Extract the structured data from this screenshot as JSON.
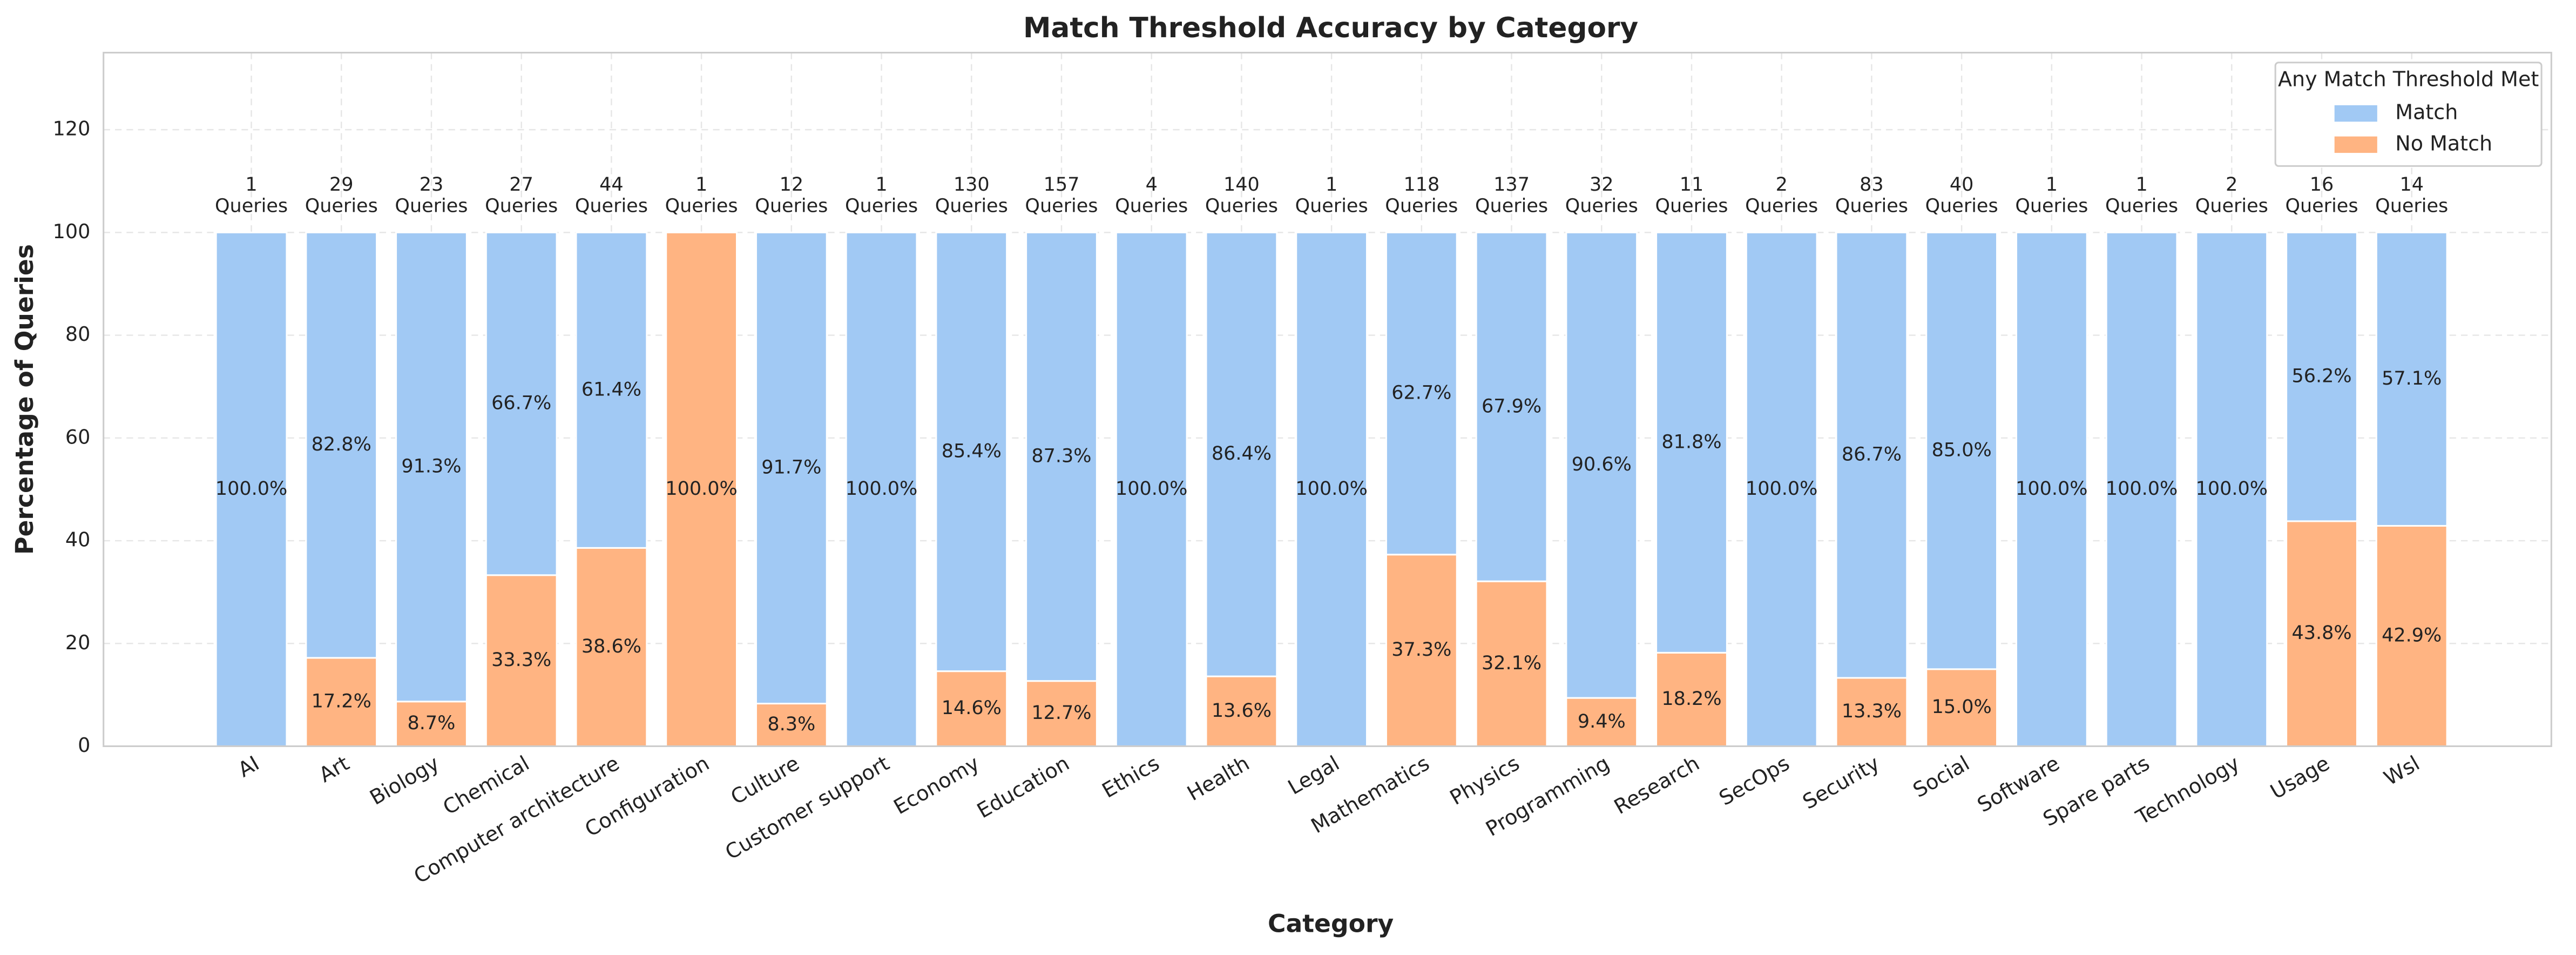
{
  "chart_data": {
    "type": "stacked_bar",
    "title": "Match Threshold Accuracy by Category",
    "x_label": "Category",
    "y_label": "Percentage of Queries",
    "legend_title": "Any Match Threshold Met",
    "legend_position": "upper right",
    "grid": true,
    "ylim": [
      0,
      135
    ],
    "yticks": [
      0,
      20,
      40,
      60,
      80,
      100,
      120
    ],
    "categories": [
      "AI",
      "Art",
      "Biology",
      "Chemical",
      "Computer architecture",
      "Configuration",
      "Culture",
      "Customer support",
      "Economy",
      "Education",
      "Ethics",
      "Health",
      "Legal",
      "Mathematics",
      "Physics",
      "Programming",
      "Research",
      "SecOps",
      "Security",
      "Social",
      "Software",
      "Spare parts",
      "Technology",
      "Usage",
      "Wsl"
    ],
    "series": [
      {
        "name": "No Match",
        "color": "#ffb482",
        "values": [
          0,
          17.2,
          8.7,
          33.3,
          38.6,
          100,
          8.3,
          0,
          14.6,
          12.7,
          0,
          13.6,
          0,
          37.3,
          32.1,
          9.4,
          18.2,
          0,
          13.3,
          15.0,
          0,
          0,
          0,
          43.8,
          42.9
        ],
        "value_labels": [
          null,
          "17.2%",
          "8.7%",
          "33.3%",
          "38.6%",
          "100.0%",
          "8.3%",
          null,
          "14.6%",
          "12.7%",
          null,
          "13.6%",
          null,
          "37.3%",
          "32.1%",
          "9.4%",
          "18.2%",
          null,
          "13.3%",
          "15.0%",
          null,
          null,
          null,
          "43.8%",
          "42.9%"
        ]
      },
      {
        "name": "Match",
        "color": "#a1c9f4",
        "values": [
          100,
          82.8,
          91.3,
          66.7,
          61.4,
          0,
          91.7,
          100,
          85.4,
          87.3,
          100,
          86.4,
          100,
          62.7,
          67.9,
          90.6,
          81.8,
          100,
          86.7,
          85.0,
          100,
          100,
          100,
          56.2,
          57.1
        ],
        "value_labels": [
          "100.0%",
          "82.8%",
          "91.3%",
          "66.7%",
          "61.4%",
          null,
          "91.7%",
          "100.0%",
          "85.4%",
          "87.3%",
          "100.0%",
          "86.4%",
          "100.0%",
          "62.7%",
          "67.9%",
          "90.6%",
          "81.8%",
          "100.0%",
          "86.7%",
          "85.0%",
          "100.0%",
          "100.0%",
          "100.0%",
          "56.2%",
          "57.1%"
        ]
      }
    ],
    "query_counts": [
      1,
      29,
      23,
      27,
      44,
      1,
      12,
      1,
      130,
      157,
      4,
      140,
      1,
      118,
      137,
      32,
      11,
      2,
      83,
      40,
      1,
      1,
      2,
      16,
      14
    ],
    "query_count_unit": "Queries"
  }
}
